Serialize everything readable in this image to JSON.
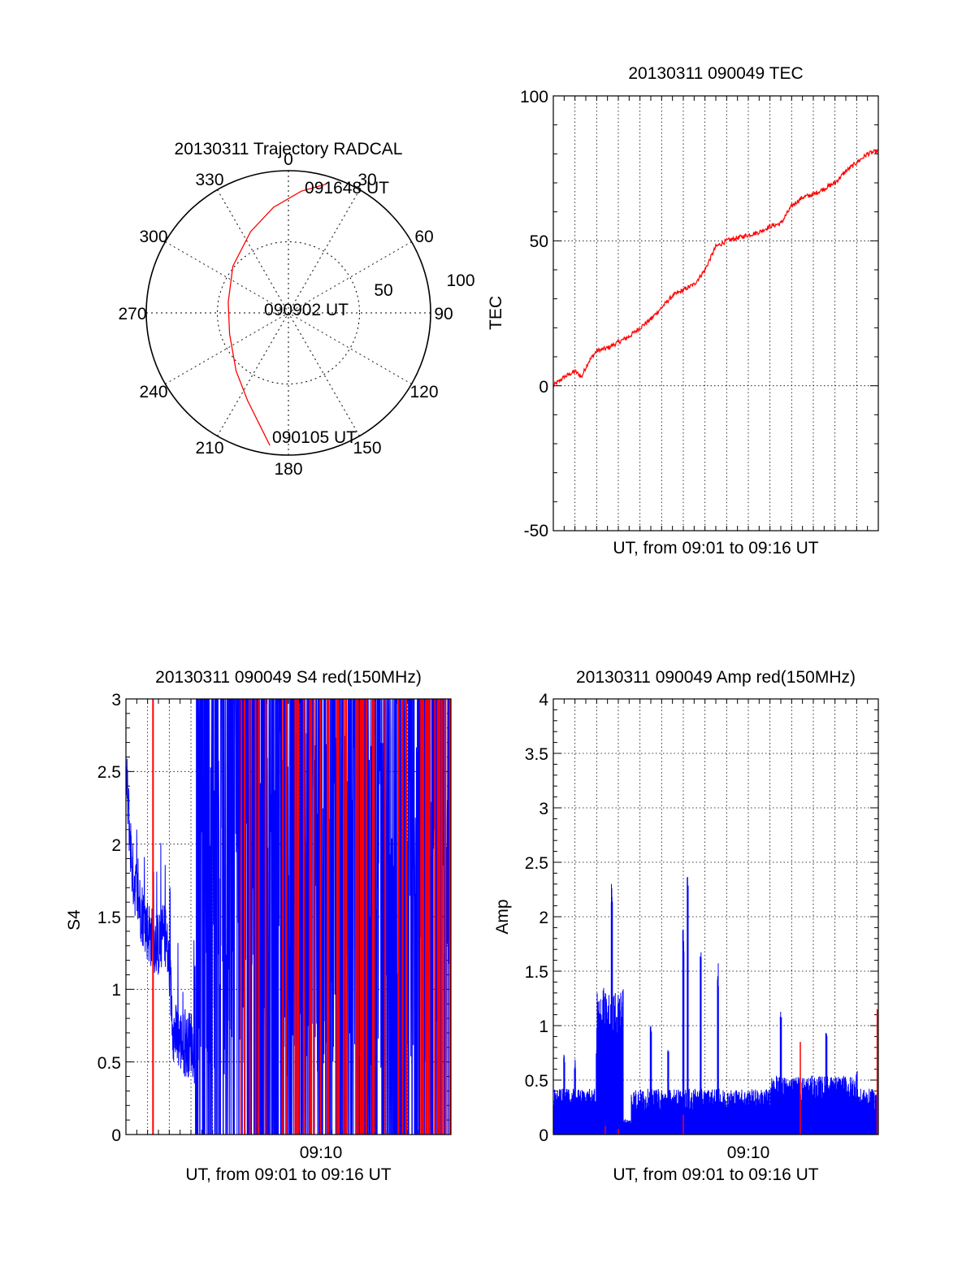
{
  "colors": {
    "red": "#ff0000",
    "blue": "#0000ff",
    "axis": "#000000",
    "grid": "#000000"
  },
  "chart_data": [
    {
      "type": "polar",
      "title": "20130311 Trajectory RADCAL",
      "angle_labels": [
        "0",
        "30",
        "60",
        "90",
        "120",
        "150",
        "180",
        "210",
        "240",
        "270",
        "300",
        "330"
      ],
      "radius_labels": [
        "50",
        "100"
      ],
      "r_max": 100,
      "trajectory": {
        "start_label": "090105 UT",
        "mid_label": "090902 UT",
        "end_label": "091648 UT",
        "az_deg": [
          188,
          194,
          205,
          222,
          250,
          280,
          310,
          335,
          352,
          6,
          16
        ],
        "r": [
          94,
          82,
          68,
          55,
          44,
          43,
          51,
          63,
          75,
          86,
          94
        ]
      }
    },
    {
      "type": "line",
      "title": "20130311 090049 TEC",
      "xlabel": "UT, from 09:01 to 09:16 UT",
      "ylabel": "TEC",
      "xlim": [
        0,
        15
      ],
      "ylim": [
        -50,
        100
      ],
      "yticks": [
        "-50",
        "0",
        "50",
        "100"
      ],
      "series": [
        {
          "name": "TEC",
          "color": "red",
          "x": [
            0,
            0.5,
            1,
            1.3,
            1.6,
            2,
            2.5,
            3,
            3.5,
            4,
            4.5,
            5,
            5.5,
            6,
            6.5,
            7,
            7.5,
            8,
            8.5,
            9,
            9.5,
            10,
            10.5,
            11,
            11.5,
            12,
            12.5,
            13,
            13.5,
            14,
            14.5,
            15
          ],
          "y": [
            0,
            3,
            5,
            3,
            8,
            12,
            13,
            15,
            17,
            20,
            23,
            27,
            31,
            33,
            35,
            40,
            48,
            50,
            51,
            52,
            53,
            55,
            56,
            62,
            65,
            66,
            68,
            70,
            74,
            77,
            80,
            81
          ]
        }
      ]
    },
    {
      "type": "line",
      "title": "20130311 090049 S4 red(150MHz)",
      "xlabel": "UT, from 09:01 to 09:16 UT",
      "ylabel": "S4",
      "xlim": [
        0,
        15
      ],
      "ylim": [
        0,
        3
      ],
      "yticks": [
        "0",
        "0.5",
        "1",
        "1.5",
        "2",
        "2.5",
        "3"
      ],
      "xticks": [
        {
          "x": 9,
          "label": "09:10"
        }
      ],
      "series": [
        {
          "name": "S4 envelope",
          "color": "blue",
          "x": [
            0,
            0.3,
            0.6,
            0.9,
            1.2,
            1.5,
            1.8,
            2.0,
            2.2,
            2.5,
            2.8,
            3.0,
            3.2
          ],
          "y": [
            2.5,
            1.8,
            1.6,
            1.45,
            1.35,
            1.3,
            1.4,
            1.15,
            0.7,
            0.65,
            0.6,
            0.65,
            0.55
          ]
        }
      ]
    },
    {
      "type": "line",
      "title": "20130311 090049 Amp red(150MHz)",
      "xlabel": "UT, from 09:01 to 09:16 UT",
      "ylabel": "Amp",
      "xlim": [
        0,
        15
      ],
      "ylim": [
        0,
        4
      ],
      "yticks": [
        "0",
        "0.5",
        "1",
        "1.5",
        "2",
        "2.5",
        "3",
        "3.5",
        "4"
      ],
      "xticks": [
        {
          "x": 9,
          "label": "09:10"
        }
      ],
      "series": [
        {
          "name": "Amp peaks",
          "color": "blue",
          "x": [
            0.5,
            1.0,
            2.0,
            2.3,
            2.7,
            3.2,
            4.5,
            5.3,
            6.0,
            6.2,
            6.8,
            7.6,
            10.5,
            12.6,
            14.0
          ],
          "y": [
            0.75,
            0.7,
            0.8,
            1.35,
            2.33,
            1.35,
            1.0,
            0.8,
            1.9,
            2.4,
            1.7,
            1.6,
            1.15,
            1.0,
            0.6
          ]
        }
      ]
    }
  ]
}
